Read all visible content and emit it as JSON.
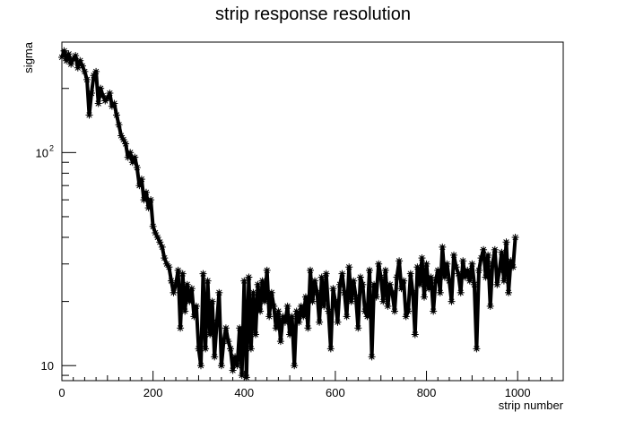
{
  "chart_data": {
    "type": "line",
    "title": "strip response resolution",
    "xlabel": "strip number",
    "ylabel": "sigma",
    "xlim": [
      0,
      1100
    ],
    "ylim": [
      8.5,
      330
    ],
    "y_scale": "log",
    "grid": false,
    "legend": "none",
    "marker": "asterisk",
    "colors": {
      "series": "#000000",
      "frame": "#000000",
      "background": "#ffffff"
    },
    "x_ticks": [
      {
        "value": 0,
        "label": "0"
      },
      {
        "value": 200,
        "label": "200"
      },
      {
        "value": 400,
        "label": "400"
      },
      {
        "value": 600,
        "label": "600"
      },
      {
        "value": 800,
        "label": "800"
      },
      {
        "value": 1000,
        "label": "1000"
      }
    ],
    "y_ticks": [
      {
        "value": 10,
        "base": "10",
        "exp": ""
      },
      {
        "value": 100,
        "base": "10",
        "exp": "2"
      }
    ],
    "series": [
      {
        "x": [
          0,
          5,
          10,
          15,
          20,
          25,
          30,
          35,
          40,
          45,
          50,
          55,
          60,
          65,
          70,
          75,
          80,
          85,
          90,
          95,
          100,
          105,
          110,
          115,
          120,
          125,
          130,
          135,
          140,
          145,
          150,
          155,
          160,
          165,
          170,
          175,
          180,
          185,
          190,
          195,
          200,
          205,
          210,
          215,
          220,
          225,
          230,
          235,
          240,
          245,
          250,
          255,
          260,
          265,
          270,
          275,
          280,
          285,
          290,
          295,
          300,
          305,
          310,
          315,
          320,
          325,
          330,
          335,
          340,
          345,
          350,
          355,
          360,
          365,
          370,
          375,
          380,
          385,
          390,
          395,
          400,
          405,
          410,
          415,
          420,
          425,
          430,
          435,
          440,
          445,
          450,
          455,
          460,
          465,
          470,
          475,
          480,
          485,
          490,
          495,
          500,
          505,
          510,
          515,
          520,
          525,
          530,
          535,
          540,
          545,
          550,
          555,
          560,
          565,
          570,
          575,
          580,
          585,
          590,
          595,
          600,
          605,
          610,
          615,
          620,
          625,
          630,
          635,
          640,
          645,
          650,
          655,
          660,
          665,
          670,
          675,
          680,
          685,
          690,
          695,
          700,
          705,
          710,
          715,
          720,
          725,
          730,
          735,
          740,
          745,
          750,
          755,
          760,
          765,
          770,
          775,
          780,
          785,
          790,
          795,
          800,
          805,
          810,
          815,
          820,
          825,
          830,
          835,
          840,
          845,
          850,
          855,
          860,
          865,
          870,
          875,
          880,
          885,
          890,
          895,
          900,
          905,
          910,
          915,
          920,
          925,
          930,
          935,
          940,
          945,
          950,
          955,
          960,
          965,
          970,
          975,
          980,
          985,
          990,
          995
        ],
        "y": [
          280,
          300,
          270,
          290,
          260,
          275,
          285,
          250,
          270,
          255,
          240,
          220,
          150,
          190,
          230,
          240,
          170,
          200,
          185,
          175,
          180,
          190,
          165,
          170,
          150,
          135,
          120,
          115,
          110,
          95,
          100,
          90,
          95,
          85,
          70,
          75,
          60,
          65,
          55,
          60,
          45,
          42,
          40,
          38,
          36,
          32,
          30,
          29,
          25,
          22,
          24,
          28,
          15,
          27,
          18,
          24,
          20,
          23,
          17,
          19,
          12,
          10,
          27,
          12,
          25,
          14,
          20,
          11,
          16,
          22,
          10,
          13,
          15,
          13,
          12,
          9.5,
          11,
          10,
          15,
          9,
          25,
          8.8,
          26,
          12,
          22,
          14,
          24,
          18,
          25,
          20,
          28,
          17,
          22,
          19,
          15,
          18,
          13,
          17,
          16,
          19,
          14,
          17,
          10,
          18,
          16,
          19,
          17,
          21,
          15,
          28,
          20,
          25,
          22,
          16,
          26,
          19,
          27,
          18,
          12,
          23,
          20,
          16,
          24,
          27,
          22,
          17,
          29,
          20,
          25,
          21,
          15,
          26,
          24,
          18,
          17,
          28,
          11,
          24,
          21,
          30,
          26,
          20,
          28,
          19,
          24,
          22,
          18,
          26,
          31,
          23,
          25,
          17,
          18,
          27,
          22,
          14,
          29,
          24,
          32,
          21,
          30,
          23,
          26,
          18,
          25,
          28,
          22,
          36,
          26,
          30,
          25,
          20,
          33,
          29,
          27,
          22,
          31,
          26,
          28,
          25,
          30,
          24,
          12,
          28,
          32,
          35,
          26,
          33,
          19,
          30,
          35,
          24,
          28,
          34,
          25,
          38,
          22,
          31,
          29,
          40
        ]
      }
    ]
  }
}
